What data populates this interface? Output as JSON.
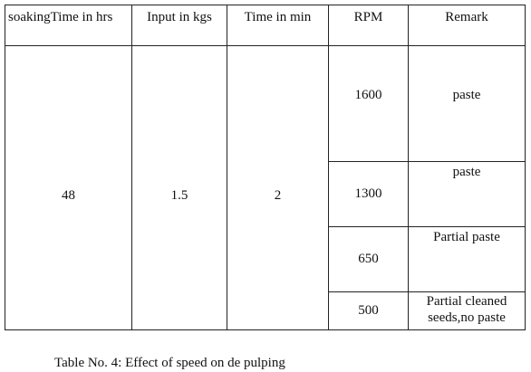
{
  "table": {
    "header": [
      "soakingTime in hrs",
      "Input in kgs",
      "Time in min",
      "RPM",
      "Remark"
    ],
    "shared": [
      "48",
      "1.5",
      "2"
    ],
    "rows": [
      [
        "1600",
        "paste"
      ],
      [
        "1300",
        "paste"
      ],
      [
        "650",
        "Partial paste"
      ],
      [
        "500",
        "Partial cleaned seeds,no paste"
      ]
    ]
  },
  "caption": "Table No. 4: Effect of speed on de pulping"
}
